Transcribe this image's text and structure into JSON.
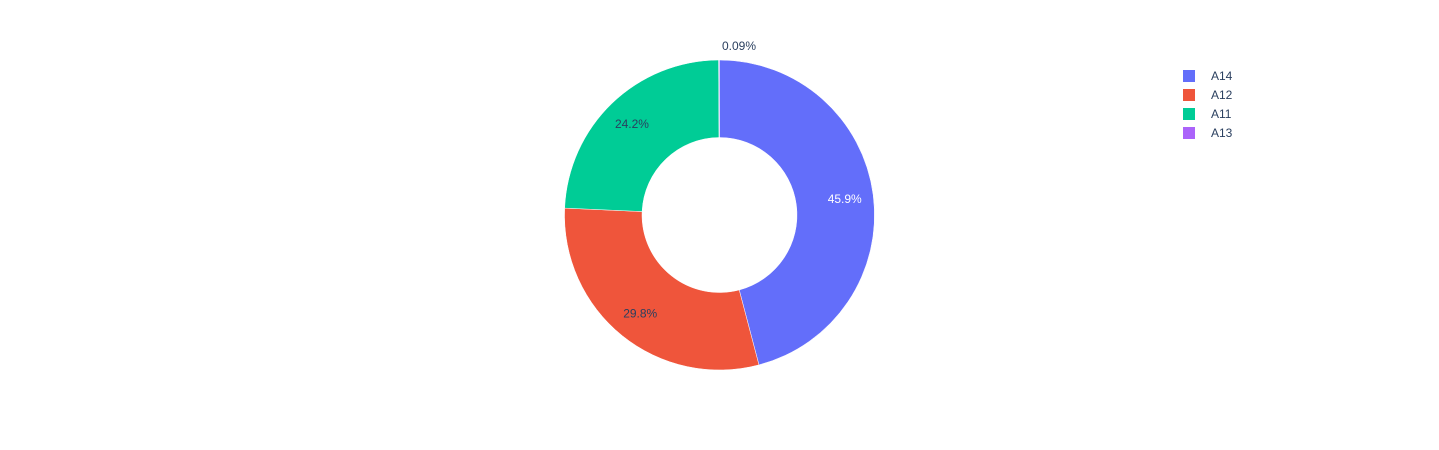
{
  "chart_data": {
    "type": "pie",
    "hole": 0.5,
    "categories": [
      "A14",
      "A12",
      "A11",
      "A13"
    ],
    "values": [
      45.9,
      29.8,
      24.2,
      0.09
    ],
    "labels": [
      "45.9%",
      "29.8%",
      "24.2%",
      "0.09%"
    ],
    "colors": [
      "#636efa",
      "#ef553b",
      "#00cc96",
      "#ab63fa"
    ],
    "label_colors": [
      "#ffffff",
      "#2a3f5f",
      "#2a3f5f",
      "#2a3f5f"
    ],
    "legend_position": "top-right",
    "title": ""
  },
  "legend": {
    "items": [
      {
        "label": "A14",
        "color": "#636efa"
      },
      {
        "label": "A12",
        "color": "#ef553b"
      },
      {
        "label": "A11",
        "color": "#00cc96"
      },
      {
        "label": "A13",
        "color": "#ab63fa"
      }
    ]
  }
}
